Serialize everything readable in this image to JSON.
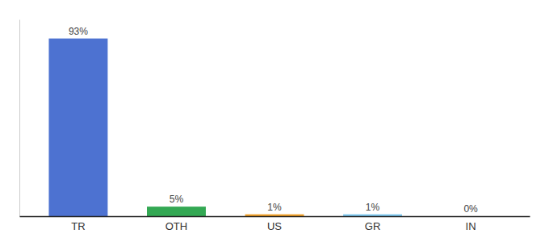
{
  "chart_data": {
    "type": "bar",
    "categories": [
      "TR",
      "OTH",
      "US",
      "GR",
      "IN"
    ],
    "values": [
      93,
      5,
      1,
      1,
      0
    ],
    "value_labels": [
      "93%",
      "5%",
      "1%",
      "1%",
      "0%"
    ],
    "colors": [
      "#4d72d1",
      "#33a853",
      "#f4a229",
      "#7ec8f0",
      "#4d72d1"
    ],
    "ylim": [
      0,
      103
    ],
    "data_labels": true,
    "grid": false,
    "tick_labels": "x"
  }
}
